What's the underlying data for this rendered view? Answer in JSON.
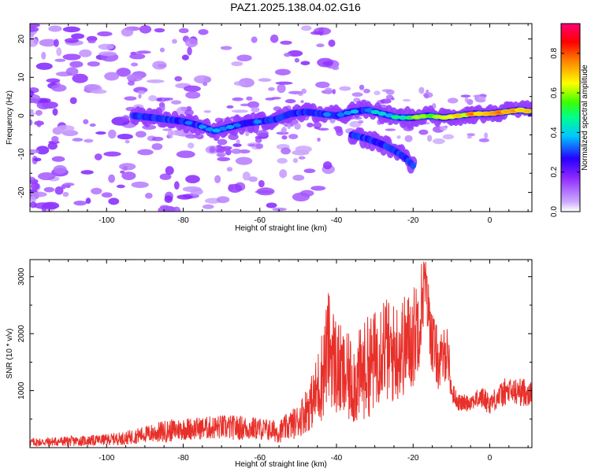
{
  "title": "PAZ1.2025.138.04.02.G16",
  "chart_data": [
    {
      "type": "heatmap",
      "title": "PAZ1.2025.138.04.02.G16",
      "xlabel": "Height of straight line (km)",
      "ylabel": "Frequency (Hz)",
      "xlim": [
        -120,
        11
      ],
      "ylim": [
        -25,
        24
      ],
      "x_ticks": [
        -100,
        -80,
        -60,
        -40,
        -20,
        0
      ],
      "y_ticks": [
        -20,
        -10,
        0,
        10,
        20
      ],
      "colorbar": {
        "label": "Normalized spectral amplitude",
        "range": [
          0,
          0.95
        ],
        "ticks": [
          0.0,
          0.2,
          0.4,
          0.6,
          0.8
        ],
        "colormap": [
          "#ffffff",
          "#c79bff",
          "#7b00ff",
          "#0000ff",
          "#00c8ff",
          "#00ff80",
          "#30ff00",
          "#ffff00",
          "#ff8000",
          "#ff0000",
          "#ff0070"
        ]
      },
      "ridges": [
        {
          "x": [
            -93,
            -88,
            -84,
            -80,
            -76,
            -72,
            -68,
            -64,
            -60,
            -56,
            -52,
            -48,
            -44,
            -40,
            -36,
            -32,
            -28,
            -24,
            -20,
            -16,
            -12,
            -8,
            -4,
            0,
            4,
            8,
            11
          ],
          "y": [
            0,
            -0.5,
            -1,
            -1.5,
            -2.5,
            -4,
            -3,
            -2,
            -1.5,
            -1,
            0.5,
            1,
            0.5,
            0,
            1,
            1.5,
            0.5,
            -0.5,
            -0.5,
            0,
            -0.5,
            0,
            0.5,
            0.5,
            1,
            1.5,
            1
          ],
          "amplitude": [
            0.25,
            0.3,
            0.3,
            0.32,
            0.35,
            0.4,
            0.38,
            0.33,
            0.35,
            0.33,
            0.3,
            0.32,
            0.35,
            0.33,
            0.38,
            0.4,
            0.45,
            0.55,
            0.65,
            0.7,
            0.78,
            0.8,
            0.85,
            0.88,
            0.85,
            0.9,
            0.75
          ]
        },
        {
          "x": [
            -36,
            -32,
            -28,
            -25,
            -22,
            -20
          ],
          "y": [
            -5,
            -6,
            -7.5,
            -9,
            -11,
            -13
          ],
          "amplitude": [
            0.3,
            0.32,
            0.35,
            0.3,
            0.25,
            0.2
          ]
        }
      ]
    },
    {
      "type": "line",
      "xlabel": "Height of straight line (km)",
      "ylabel": "SNR (10 * v/v)",
      "xlim": [
        -120,
        11
      ],
      "ylim": [
        0,
        3300
      ],
      "x_ticks": [
        -100,
        -80,
        -60,
        -40,
        -20,
        0
      ],
      "y_ticks": [
        1000,
        2000,
        3000
      ],
      "color": "#e8302a",
      "x": [
        -120,
        -115,
        -110,
        -105,
        -100,
        -95,
        -90,
        -85,
        -80,
        -75,
        -70,
        -65,
        -60,
        -55,
        -50,
        -46,
        -44,
        -42,
        -40,
        -38,
        -35,
        -32,
        -30,
        -28,
        -26,
        -24,
        -22,
        -20,
        -18,
        -17,
        -15,
        -13,
        -11,
        -10,
        -8,
        -6,
        -4,
        -2,
        0,
        2,
        4,
        6,
        8,
        10,
        11
      ],
      "y": [
        100,
        110,
        120,
        130,
        150,
        180,
        250,
        300,
        350,
        360,
        380,
        370,
        350,
        300,
        500,
        900,
        1300,
        1900,
        1500,
        1300,
        1250,
        1500,
        1600,
        2000,
        1700,
        1800,
        1900,
        2000,
        2500,
        3000,
        1900,
        1500,
        1800,
        1000,
        800,
        800,
        850,
        900,
        800,
        900,
        1000,
        1000,
        1000,
        1000,
        950
      ],
      "amplitude_envelope": [
        80,
        80,
        90,
        90,
        100,
        120,
        150,
        200,
        200,
        200,
        220,
        220,
        200,
        200,
        300,
        500,
        800,
        1000,
        900,
        800,
        800,
        900,
        900,
        1000,
        900,
        900,
        900,
        900,
        900,
        500,
        600,
        500,
        500,
        200,
        150,
        150,
        150,
        200,
        200,
        200,
        250,
        250,
        250,
        250,
        200
      ]
    }
  ]
}
